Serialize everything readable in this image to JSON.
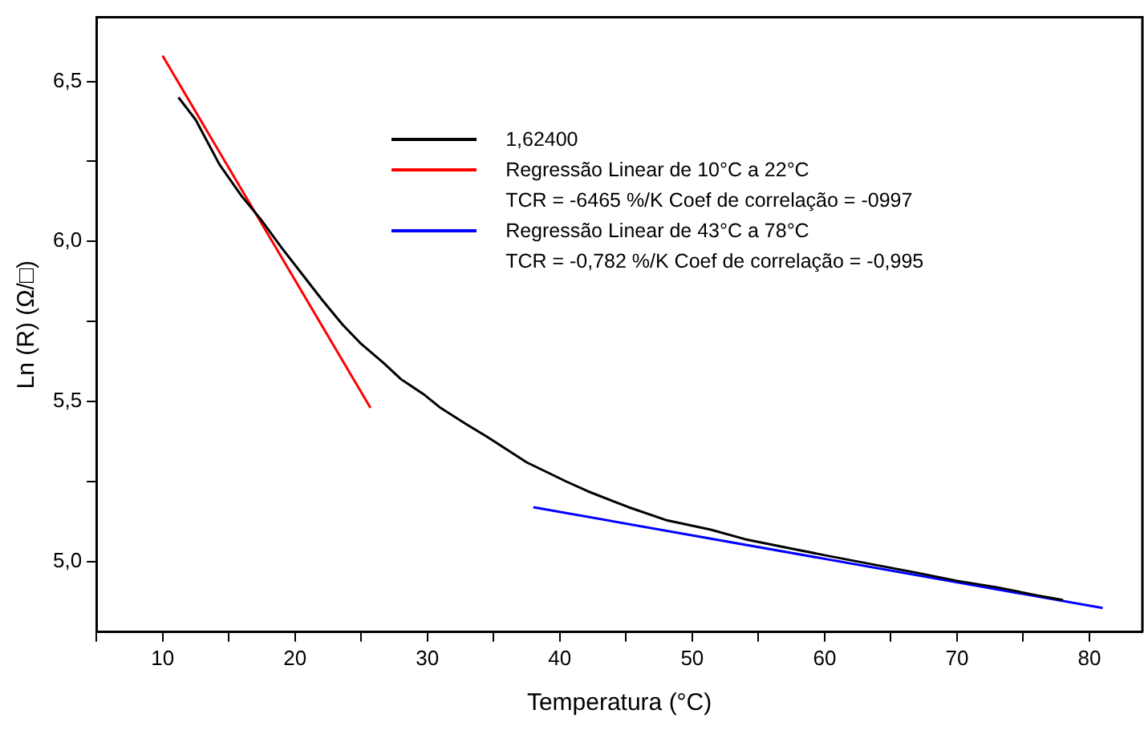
{
  "chart_data": {
    "type": "line",
    "xlabel": "Temperatura (°C)",
    "ylabel": "Ln (R) (Ω/□)",
    "xlim": [
      5,
      84
    ],
    "ylim": [
      4.78,
      6.7
    ],
    "xticks": [
      {
        "value": 5,
        "label": null
      },
      {
        "value": 10,
        "label": "10"
      },
      {
        "value": 15,
        "label": null
      },
      {
        "value": 20,
        "label": "20"
      },
      {
        "value": 25,
        "label": null
      },
      {
        "value": 30,
        "label": "30"
      },
      {
        "value": 35,
        "label": null
      },
      {
        "value": 40,
        "label": "40"
      },
      {
        "value": 45,
        "label": null
      },
      {
        "value": 50,
        "label": "50"
      },
      {
        "value": 55,
        "label": null
      },
      {
        "value": 60,
        "label": "60"
      },
      {
        "value": 65,
        "label": null
      },
      {
        "value": 70,
        "label": "70"
      },
      {
        "value": 75,
        "label": null
      },
      {
        "value": 80,
        "label": "80"
      }
    ],
    "yticks": [
      {
        "value": 5,
        "label": "5,0"
      },
      {
        "value": 5.25,
        "label": null
      },
      {
        "value": 5.5,
        "label": "5,5"
      },
      {
        "value": 5.75,
        "label": null
      },
      {
        "value": 6,
        "label": "6,0"
      },
      {
        "value": 6.25,
        "label": null
      },
      {
        "value": 6.5,
        "label": "6,5"
      }
    ],
    "grid": false,
    "legend": "top right",
    "marker": "none",
    "line_style": "solid",
    "series": [
      {
        "name": "1,62400",
        "color": "#000000",
        "x": [
          11.2,
          12.5,
          14.3,
          16,
          17.4,
          19,
          20.5,
          22,
          23.6,
          25,
          26.7,
          28,
          29.8,
          31,
          32.9,
          34.5,
          36,
          37.5,
          39,
          40.5,
          42.1,
          45.2,
          48,
          51.4,
          54,
          57.6,
          60,
          63.8,
          67,
          70,
          73,
          76,
          78
        ],
        "values": [
          6.45,
          6.38,
          6.24,
          6.14,
          6.07,
          5.98,
          5.9,
          5.82,
          5.74,
          5.68,
          5.62,
          5.57,
          5.52,
          5.48,
          5.43,
          5.39,
          5.35,
          5.31,
          5.28,
          5.25,
          5.22,
          5.17,
          5.13,
          5.1,
          5.07,
          5.04,
          5.02,
          4.99,
          4.965,
          4.94,
          4.92,
          4.895,
          4.88
        ]
      },
      {
        "name": "Regressão Linear de 10°C a 22°C",
        "color": "#ff0000",
        "x": [
          10,
          25.7
        ],
        "values": [
          6.58,
          5.48
        ]
      },
      {
        "name": "Regressão Linear de 43°C a 78°C",
        "color": "#0000ff",
        "x": [
          38,
          81
        ],
        "values": [
          5.17,
          4.855
        ]
      }
    ],
    "annotations": [
      "TCR = -6465 %/K Coef de correlação = -0997",
      "TCR = -0,782 %/K Coef de correlação = -0,995"
    ]
  }
}
